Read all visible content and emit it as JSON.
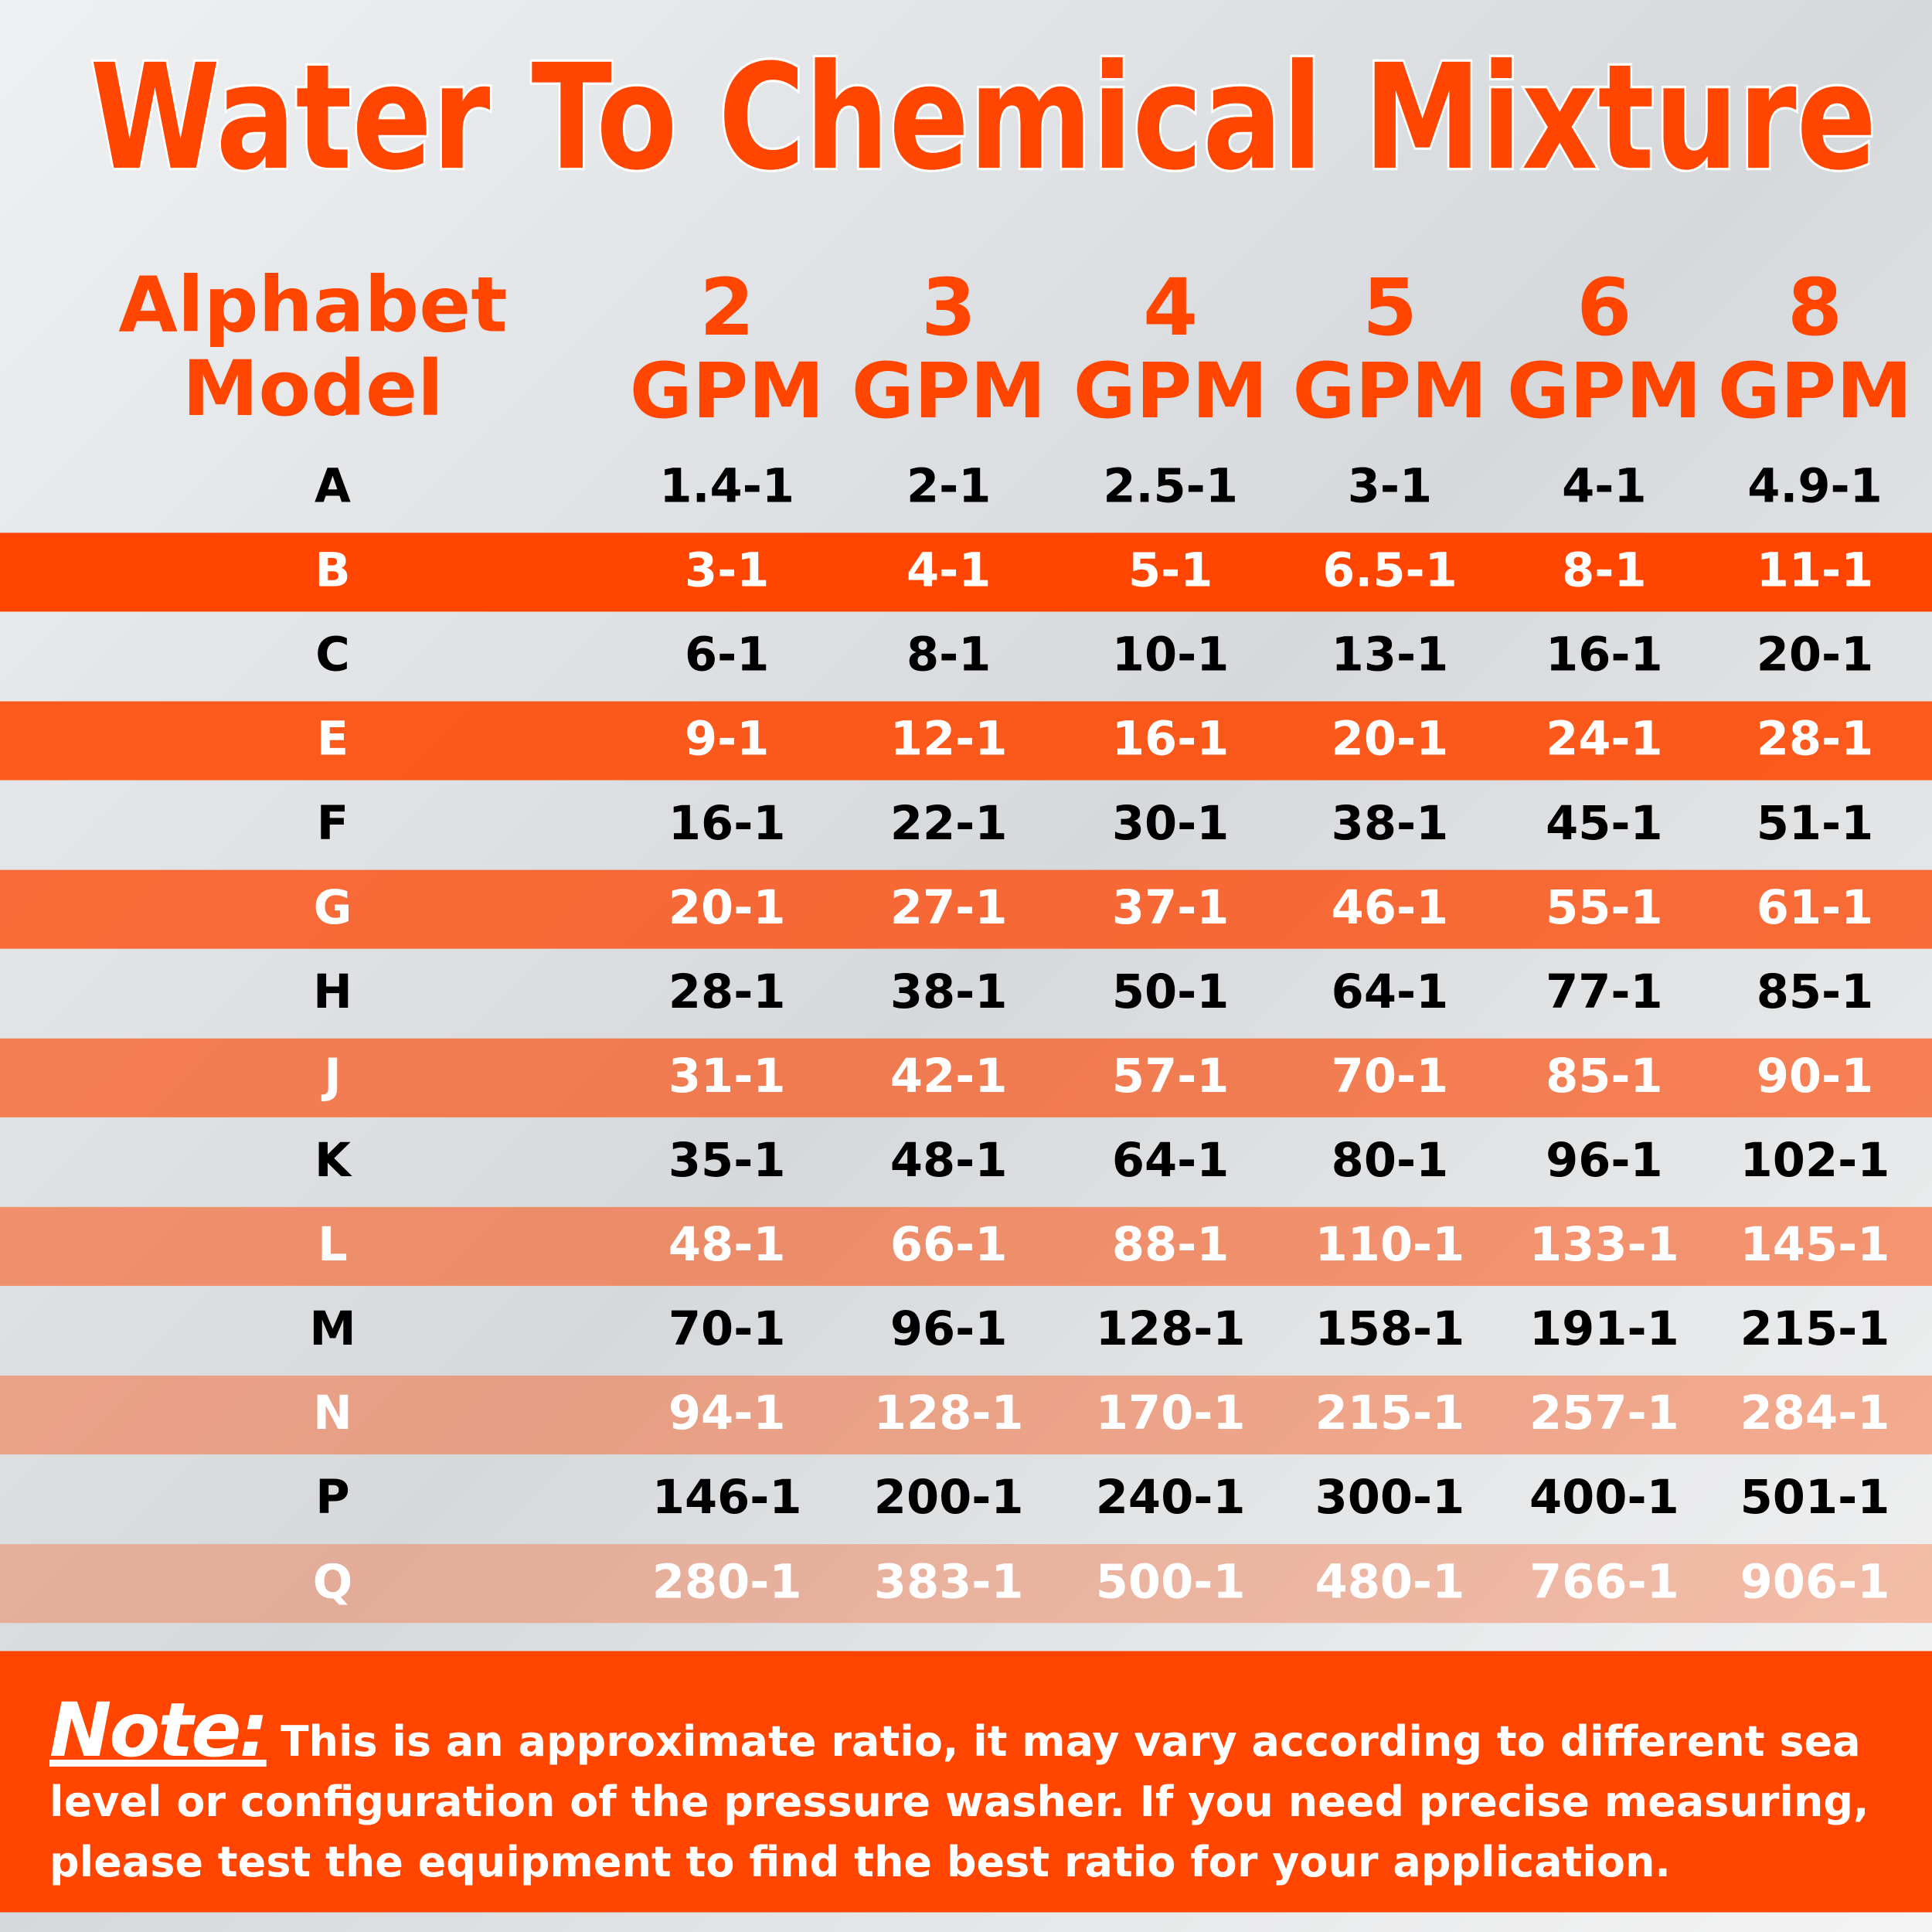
{
  "title": "Water To Chemical Mixture",
  "table": {
    "header": {
      "model": [
        "Alphabet",
        "Model"
      ],
      "columns": [
        {
          "number": "2",
          "unit": "GPM"
        },
        {
          "number": "3",
          "unit": "GPM"
        },
        {
          "number": "4",
          "unit": "GPM"
        },
        {
          "number": "5",
          "unit": "GPM"
        },
        {
          "number": "6",
          "unit": "GPM"
        },
        {
          "number": "8",
          "unit": "GPM"
        }
      ]
    },
    "rows": [
      {
        "model": "A",
        "values": [
          "1.4-1",
          "2-1",
          "2.5-1",
          "3-1",
          "4-1",
          "4.9-1"
        ]
      },
      {
        "model": "B",
        "values": [
          "3-1",
          "4-1",
          "5-1",
          "6.5-1",
          "8-1",
          "11-1"
        ]
      },
      {
        "model": "C",
        "values": [
          "6-1",
          "8-1",
          "10-1",
          "13-1",
          "16-1",
          "20-1"
        ]
      },
      {
        "model": "E",
        "values": [
          "9-1",
          "12-1",
          "16-1",
          "20-1",
          "24-1",
          "28-1"
        ]
      },
      {
        "model": "F",
        "values": [
          "16-1",
          "22-1",
          "30-1",
          "38-1",
          "45-1",
          "51-1"
        ]
      },
      {
        "model": "G",
        "values": [
          "20-1",
          "27-1",
          "37-1",
          "46-1",
          "55-1",
          "61-1"
        ]
      },
      {
        "model": "H",
        "values": [
          "28-1",
          "38-1",
          "50-1",
          "64-1",
          "77-1",
          "85-1"
        ]
      },
      {
        "model": "J",
        "values": [
          "31-1",
          "42-1",
          "57-1",
          "70-1",
          "85-1",
          "90-1"
        ]
      },
      {
        "model": "K",
        "values": [
          "35-1",
          "48-1",
          "64-1",
          "80-1",
          "96-1",
          "102-1"
        ]
      },
      {
        "model": "L",
        "values": [
          "48-1",
          "66-1",
          "88-1",
          "110-1",
          "133-1",
          "145-1"
        ]
      },
      {
        "model": "M",
        "values": [
          "70-1",
          "96-1",
          "128-1",
          "158-1",
          "191-1",
          "215-1"
        ]
      },
      {
        "model": "N",
        "values": [
          "94-1",
          "128-1",
          "170-1",
          "215-1",
          "257-1",
          "284-1"
        ]
      },
      {
        "model": "P",
        "values": [
          "146-1",
          "200-1",
          "240-1",
          "300-1",
          "400-1",
          "501-1"
        ]
      },
      {
        "model": "Q",
        "values": [
          "280-1",
          "383-1",
          "500-1",
          "480-1",
          "766-1",
          "906-1"
        ]
      }
    ]
  },
  "note": {
    "label": "Note:",
    "text": "This is an approximate ratio, it may vary according to different sea level or configuration of the pressure washer. If you need precise measuring, please test the equipment to find the best ratio for your application."
  }
}
